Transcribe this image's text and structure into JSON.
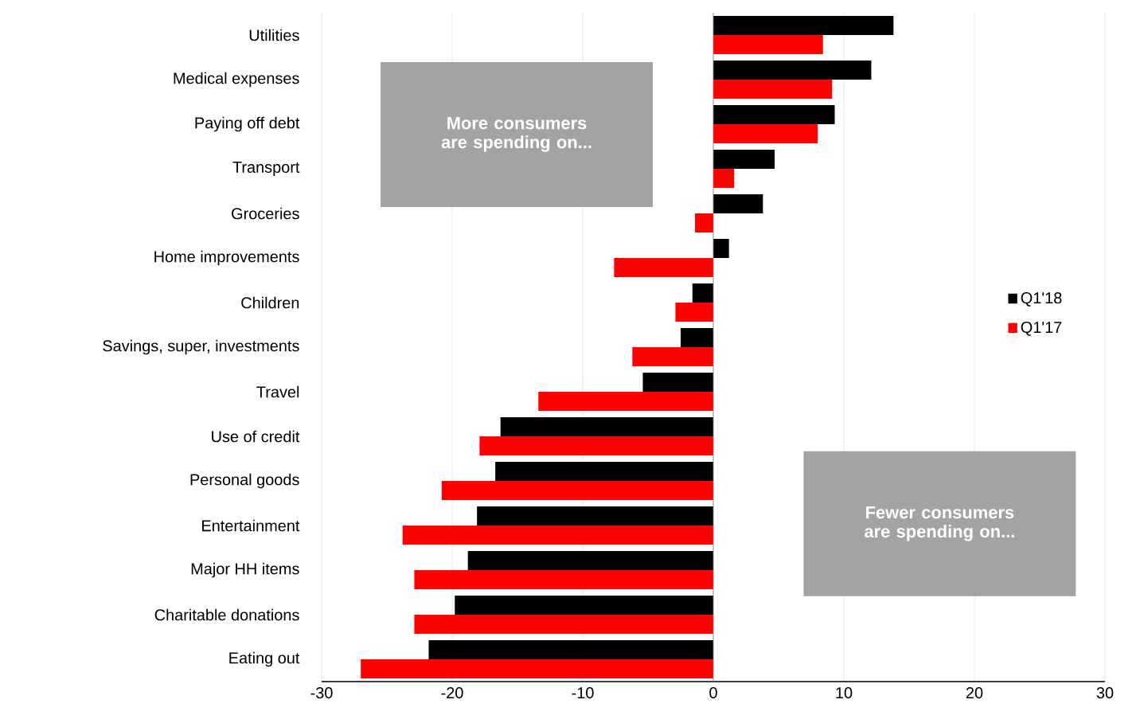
{
  "chart_data": {
    "type": "bar",
    "orientation": "horizontal",
    "categories": [
      "Utilities",
      "Medical expenses",
      "Paying off debt",
      "Transport",
      "Groceries",
      "Home improvements",
      "Children",
      "Savings, super, investments",
      "Travel",
      "Use of credit",
      "Personal goods",
      "Entertainment",
      "Major HH items",
      "Charitable donations",
      "Eating out"
    ],
    "series": [
      {
        "name": "Q1'18",
        "color": "#000000",
        "values": [
          13.8,
          12.1,
          9.3,
          4.7,
          3.8,
          1.2,
          -1.6,
          -2.5,
          -5.4,
          -16.3,
          -16.7,
          -18.1,
          -18.8,
          -19.8,
          -21.8
        ]
      },
      {
        "name": "Q1'17",
        "color": "#ff0000",
        "values": [
          8.4,
          9.1,
          8.0,
          1.6,
          -1.4,
          -7.6,
          -2.9,
          -6.2,
          -13.4,
          -17.9,
          -20.8,
          -23.8,
          -22.9,
          -22.9,
          -27.0
        ]
      }
    ],
    "xlim": [
      -30,
      30
    ],
    "xticks": [
      -30,
      -20,
      -10,
      0,
      10,
      20,
      30
    ],
    "grid": "x",
    "legend": "right",
    "annotations": [
      "More consumers are spending on...",
      "Fewer consumers are spending  on..."
    ]
  }
}
